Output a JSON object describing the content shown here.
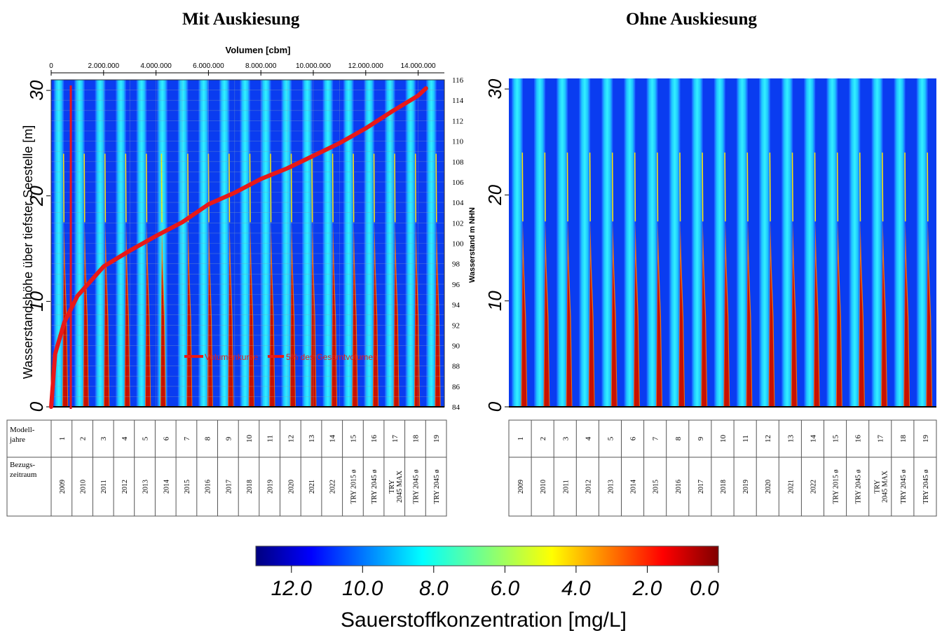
{
  "panels": [
    {
      "id": "left",
      "title": "Mit Auskiesung",
      "stripe_shift_index": 6
    },
    {
      "id": "right",
      "title": "Ohne Auskiesung"
    }
  ],
  "left_axes": {
    "ylabel": "Wasserstandshöhe über tiefster Seestelle [m]",
    "y_ticks": [
      "0",
      "10",
      "20",
      "30"
    ],
    "top_label": "Volumen [cbm]",
    "top_ticks": [
      "0",
      "2.000.000",
      "4.000.000",
      "6.000.000",
      "8.000.000",
      "10.000.000",
      "12.000.000",
      "14.000.000"
    ],
    "right_label": "Wasserstand m NHN",
    "right_ticks": [
      "84",
      "86",
      "88",
      "90",
      "92",
      "94",
      "96",
      "98",
      "100",
      "102",
      "104",
      "106",
      "108",
      "110",
      "112",
      "114",
      "116"
    ]
  },
  "right_axes": {
    "y_ticks": [
      "0",
      "10",
      "20",
      "30"
    ]
  },
  "legend_inline": {
    "entry1": "Volumenkurve",
    "entry2": "5% des Gesamtvolumen"
  },
  "table": {
    "row1_header_line1": "Modell-",
    "row1_header_line2": "jahre",
    "row2_header_line1": "Bezugs-",
    "row2_header_line2": "zeitraum",
    "model_years": [
      "1",
      "2",
      "3",
      "4",
      "5",
      "6",
      "7",
      "8",
      "9",
      "10",
      "11",
      "12",
      "13",
      "14",
      "15",
      "16",
      "17",
      "18",
      "19"
    ],
    "periods": [
      "2009",
      "2010",
      "2011",
      "2012",
      "2013",
      "2014",
      "2015",
      "2016",
      "2017",
      "2018",
      "2019",
      "2020",
      "2021",
      "2022",
      "TRY 2015 ø",
      "TRY 2045 ø",
      "TRY 2045 MAX",
      "TRY 2045 ø",
      "TRY 2045 ø"
    ]
  },
  "colorbar": {
    "label": "Sauerstoffkonzentration [mg/L]",
    "ticks": [
      "12.0",
      "10.0",
      "8.0",
      "6.0",
      "4.0",
      "2.0",
      "0.0"
    ]
  },
  "chart_data": {
    "type": "heatmap",
    "volume_curve": {
      "name": "Volumenkurve",
      "x_unit": "cbm",
      "y_unit": "m",
      "points": [
        [
          0,
          0
        ],
        [
          150000,
          5
        ],
        [
          500000,
          8
        ],
        [
          1000000,
          10.5
        ],
        [
          2000000,
          13.3
        ],
        [
          3000000,
          14.8
        ],
        [
          4000000,
          16.2
        ],
        [
          5000000,
          17.5
        ],
        [
          6000000,
          19.2
        ],
        [
          7000000,
          20.3
        ],
        [
          8000000,
          21.6
        ],
        [
          9000000,
          22.6
        ],
        [
          10000000,
          23.8
        ],
        [
          11000000,
          25
        ],
        [
          12000000,
          26.4
        ],
        [
          13000000,
          28
        ],
        [
          14000000,
          29.5
        ],
        [
          14300000,
          30.2
        ]
      ]
    },
    "five_percent_volume": {
      "name": "5% des Gesamtvolumen",
      "x": 750000
    },
    "x_volume_range": [
      0,
      15000000
    ],
    "y_range": [
      0,
      31
    ],
    "right_axis_range": [
      84,
      116
    ],
    "colorbar_range": [
      0,
      13
    ]
  }
}
